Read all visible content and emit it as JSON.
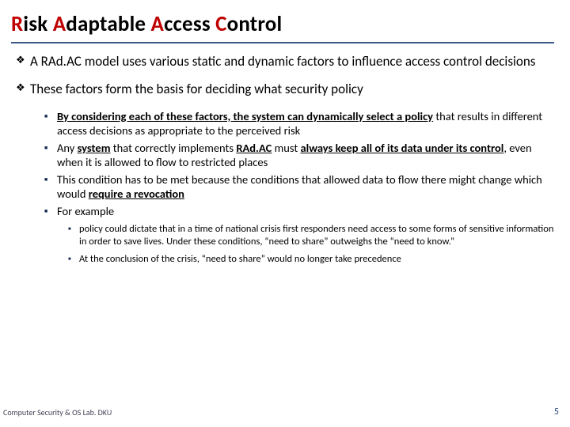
{
  "title": {
    "l1": "R",
    "w1": "isk ",
    "l2": "A",
    "w2": "daptable ",
    "l3": "A",
    "w3": "ccess ",
    "l4": "C",
    "w4": "ontrol"
  },
  "p1": "A RAd.AC model uses various static and dynamic factors to influence access control decisions",
  "p2": "These factors form the basis for deciding what security policy",
  "s1a": "By considering each of these factors, the system can dynamically select a policy",
  "s1b": " that results in different access decisions as appropriate to the perceived risk",
  "s2a": "Any ",
  "s2b": "system",
  "s2c": " that correctly implements ",
  "s2d": "RAd.AC",
  "s2e": " must ",
  "s2f": "always keep all of its data under its control",
  "s2g": ", even when it is allowed to flow to restricted places",
  "s3a": "This condition has to be met because the conditions that allowed data to flow there might change which would ",
  "s3b": "require a revocation",
  "s4": "For example",
  "t1": "policy could dictate that in a time of national crisis first responders need access to some forms of sensitive information in order to save lives. Under these conditions, “need to share” outweighs the “need to know.”",
  "t2": "At the conclusion of the crisis, “need to share” would no longer take precedence",
  "footer": "Computer Security & OS Lab. DKU",
  "page": "5",
  "diamond": "❖",
  "square": "■"
}
